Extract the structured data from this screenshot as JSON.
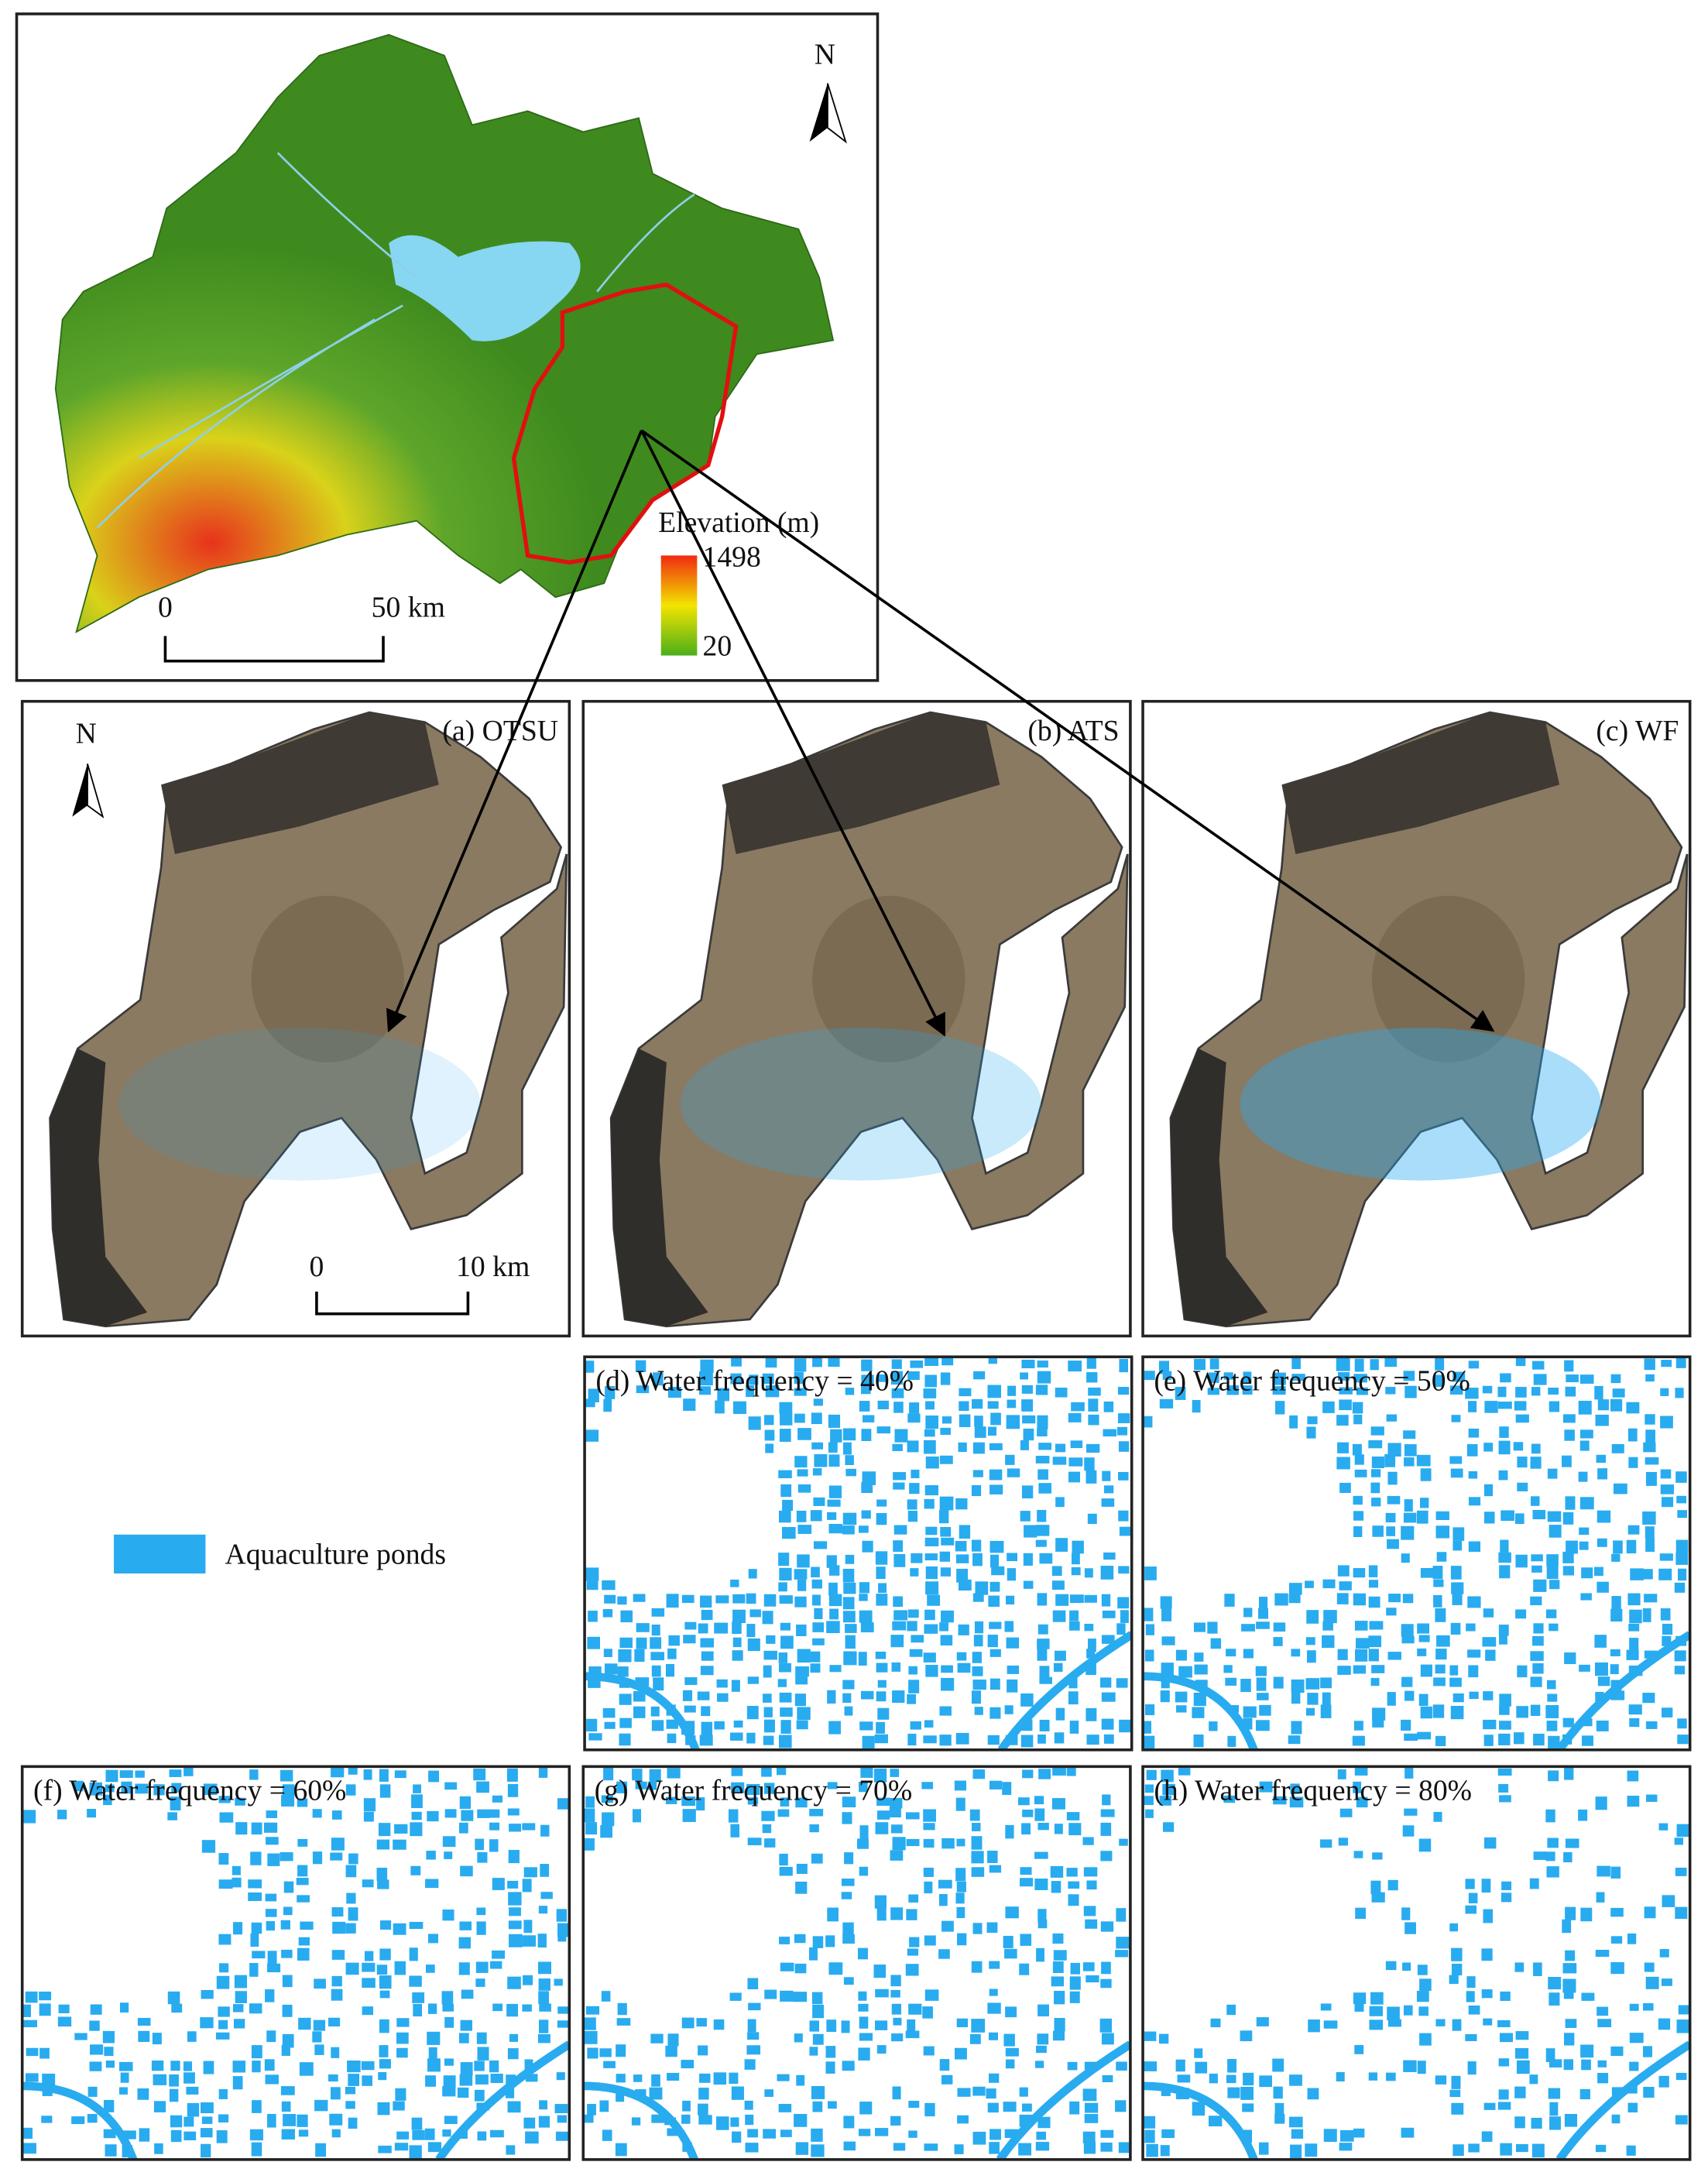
{
  "main_map": {
    "north": "N",
    "legend": {
      "title": "Elevation (m)",
      "max": "1498",
      "min": "20"
    },
    "scale_bar": {
      "start": "0",
      "end": "50 km"
    }
  },
  "panels": [
    {
      "label": "(a) OTSU"
    },
    {
      "label": "(b) ATS"
    },
    {
      "label": "(c) WF"
    },
    {
      "label": "(d) Water frequency = 40%"
    },
    {
      "label": "(e) Water frequency = 50%"
    },
    {
      "label": "(f) Water frequency = 60%"
    },
    {
      "label": "(g) Water frequency = 70%"
    },
    {
      "label": "(h) Water frequency = 80%"
    }
  ],
  "panel_a": {
    "north": "N",
    "scale_bar": {
      "start": "0",
      "end": "10 km"
    }
  },
  "legend": {
    "label": "Aquaculture ponds"
  }
}
